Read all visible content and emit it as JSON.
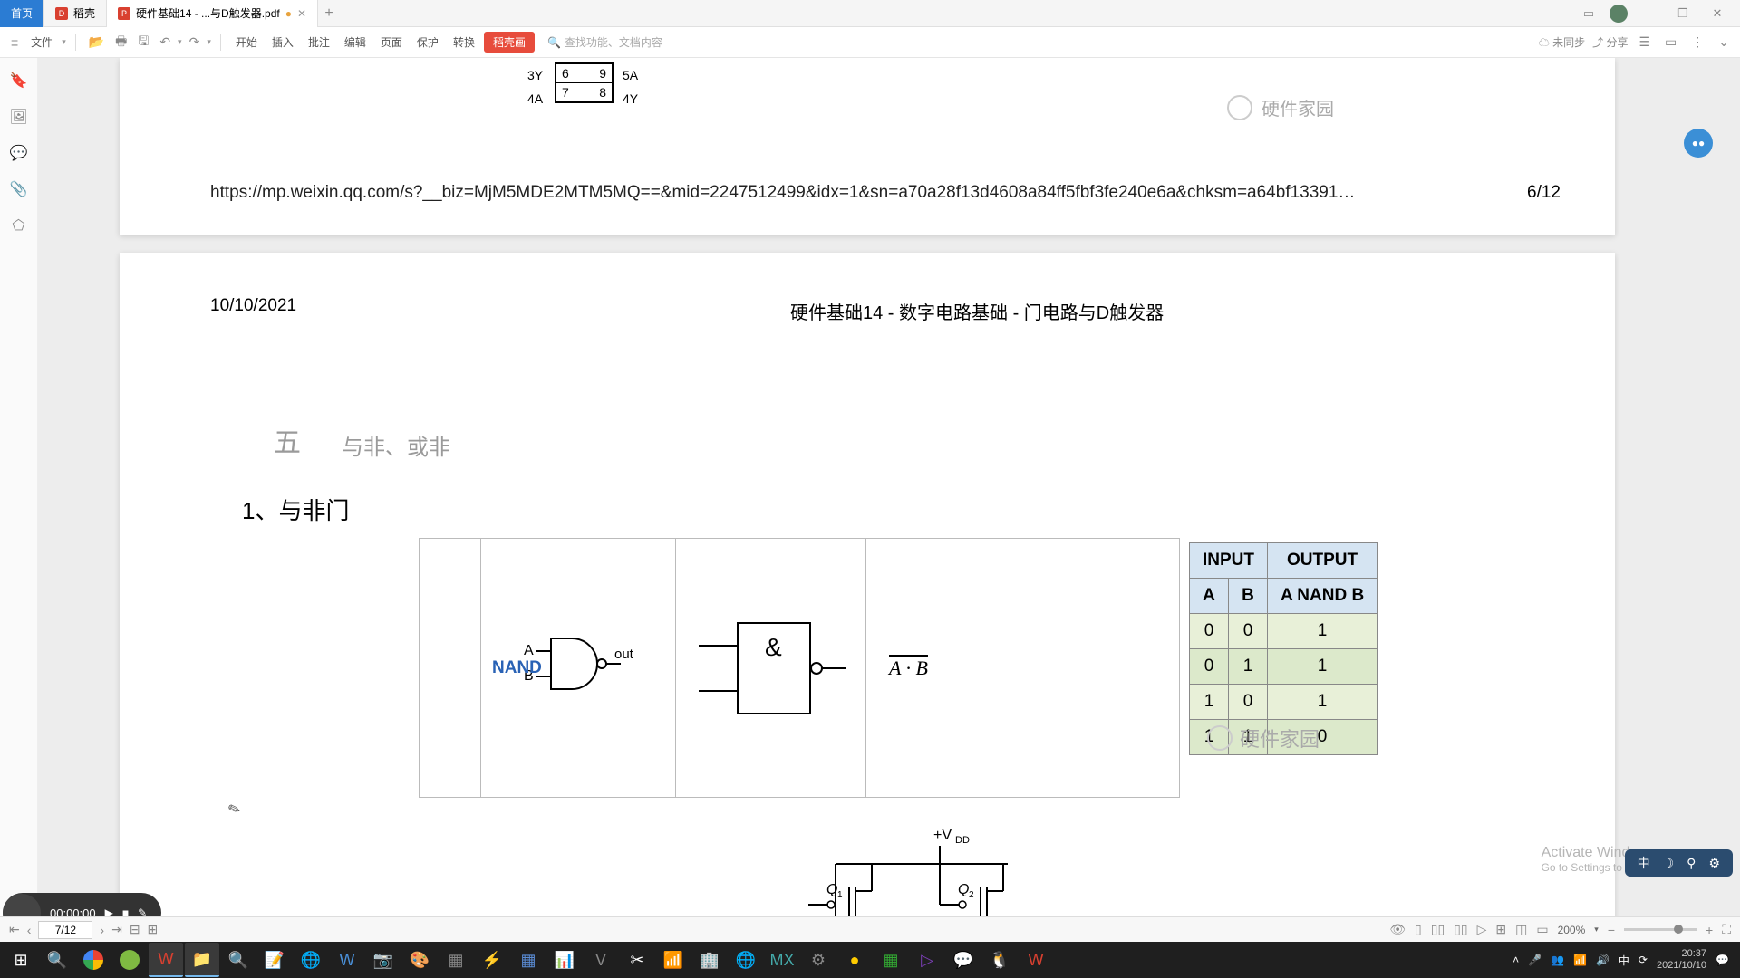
{
  "tabs": {
    "home": "首页",
    "app": "稻壳",
    "doc": "硬件基础14 - ...与D触发器.pdf"
  },
  "toolbar": {
    "file": "文件",
    "start": "开始",
    "insert": "插入",
    "annotate": "批注",
    "edit": "编辑",
    "page": "页面",
    "protect": "保护",
    "convert": "转换",
    "special": "稻壳画",
    "search_ph": "查找功能、文档内容",
    "sync": "未同步",
    "share": "分享"
  },
  "page1": {
    "pins_left": [
      "3Y",
      "4A"
    ],
    "pins_left_num": [
      "6",
      "7"
    ],
    "pins_right_num": [
      "9",
      "8"
    ],
    "pins_right": [
      "5A",
      "4Y"
    ],
    "watermark": "硬件家园",
    "url": "https://mp.weixin.qq.com/s?__biz=MjM5MDE2MTM5MQ==&mid=2247512499&idx=1&sn=a70a28f13d4608a84ff5fbf3fe240e6a&chksm=a64bf13391…",
    "pagenum": "6/12"
  },
  "page2": {
    "date": "10/10/2021",
    "title": "硬件基础14 - 数字电路基础 - 门电路与D触发器",
    "section_num": "五",
    "section_text": "与非、或非",
    "subsection": "1、与非门",
    "nand_label": "NAND",
    "gate_inputs": [
      "A",
      "B"
    ],
    "gate_output": "out",
    "amp_sym": "&",
    "expr": "A · B",
    "truth": {
      "input_hdr": "INPUT",
      "output_hdr": "OUTPUT",
      "cols": [
        "A",
        "B",
        "A NAND B"
      ],
      "rows": [
        [
          "0",
          "0",
          "1"
        ],
        [
          "0",
          "1",
          "1"
        ],
        [
          "1",
          "0",
          "1"
        ],
        [
          "1",
          "1",
          "0"
        ]
      ]
    },
    "watermark": "硬件家园",
    "vdd": "+V",
    "vdd_sub": "DD",
    "q1": "Q",
    "q2": "Q"
  },
  "status": {
    "page_current": "7/12",
    "zoom": "200%"
  },
  "pill": {
    "time": "00:00:00"
  },
  "pill_r": [
    "中",
    "☽",
    "⚙",
    "⚙"
  ],
  "activate": {
    "l1": "Activate Windows",
    "l2": "Go to Settings to activate Windows."
  },
  "tray": {
    "ime": "中",
    "time": "20:37",
    "date": "2021/10/10"
  },
  "taskbar_apps": [
    {
      "c": "#fff",
      "t": "⊞"
    },
    {
      "c": "#fff",
      "t": "🔍"
    },
    {
      "c": "#fff",
      "bg": "#fff",
      "t": ""
    },
    {
      "c": "#fff",
      "t": ""
    },
    {
      "c": "#d94030",
      "t": "W"
    },
    {
      "c": "#f5c542",
      "t": "📁"
    },
    {
      "c": "#f59f00",
      "t": "🔍"
    },
    {
      "c": "#ffd93b",
      "t": "📝"
    },
    {
      "c": "#fff",
      "t": "🌐"
    },
    {
      "c": "#4a90d9",
      "t": "W"
    },
    {
      "c": "#4a90d9",
      "t": "📷"
    },
    {
      "c": "#fff",
      "t": "🎨"
    },
    {
      "c": "#888",
      "t": "▦"
    },
    {
      "c": "#3c3",
      "t": "⚡"
    },
    {
      "c": "#5b8dd6",
      "t": "▦"
    },
    {
      "c": "#d88",
      "t": "📊"
    },
    {
      "c": "#888",
      "t": "V"
    },
    {
      "c": "#fff",
      "t": "✂"
    },
    {
      "c": "#d94030",
      "t": "📶"
    },
    {
      "c": "#6a8",
      "t": "🏢"
    },
    {
      "c": "#4a90d9",
      "t": "🌐"
    },
    {
      "c": "#4aa",
      "t": "MX"
    },
    {
      "c": "#888",
      "t": "⚙"
    },
    {
      "c": "#fc0",
      "t": "●"
    },
    {
      "c": "#3a3",
      "t": "▦"
    },
    {
      "c": "#7b3fb5",
      "t": "▷"
    },
    {
      "c": "#3c3",
      "t": "💬"
    },
    {
      "c": "#fff",
      "t": "🐧"
    },
    {
      "c": "#d94030",
      "t": "W"
    }
  ]
}
